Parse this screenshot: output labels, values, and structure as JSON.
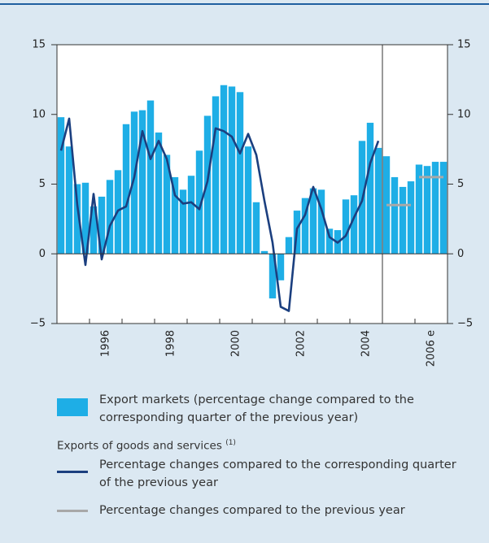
{
  "chart_data": {
    "type": "bar_line",
    "xlim": [
      1995,
      2007
    ],
    "xticks": [
      {
        "value": 1996,
        "label": "1996"
      },
      {
        "value": 1998,
        "label": "1998"
      },
      {
        "value": 2000,
        "label": "2000"
      },
      {
        "value": 2002,
        "label": "2002"
      },
      {
        "value": 2004,
        "label": "2004"
      },
      {
        "value": 2006,
        "label": "2006 e"
      }
    ],
    "divider_x": 2005,
    "ylim": [
      -5,
      15
    ],
    "yticks": [
      {
        "value": -5,
        "label": "−5"
      },
      0,
      5,
      10,
      15
    ],
    "series": [
      {
        "name": "Export markets (percentage change compared to the corresponding quarter of the previous year)",
        "type": "bar",
        "color": "#1eaee6",
        "values": [
          9.8,
          7.7,
          5.0,
          5.1,
          3.4,
          4.1,
          5.3,
          6.0,
          9.3,
          10.2,
          10.3,
          11.0,
          8.7,
          7.1,
          5.5,
          4.6,
          5.6,
          7.4,
          9.9,
          11.3,
          12.1,
          12.0,
          11.6,
          7.7,
          3.7,
          0.2,
          -3.2,
          -1.9,
          1.2,
          3.1,
          4.0,
          4.7,
          4.6,
          1.8,
          1.7,
          3.9,
          4.2,
          8.1,
          9.4,
          7.6,
          7.0,
          5.5,
          4.8,
          5.2,
          6.4,
          6.3,
          6.6,
          6.6
        ]
      },
      {
        "name": "Percentage changes compared to the corresponding quarter of the previous year",
        "type": "line",
        "color": "#1b3f7f",
        "values": [
          7.4,
          9.7,
          3.5,
          -0.8,
          4.3,
          -0.4,
          2.0,
          3.1,
          3.4,
          5.5,
          8.8,
          6.8,
          8.1,
          6.8,
          4.2,
          3.6,
          3.7,
          3.2,
          5.2,
          9.0,
          8.8,
          8.4,
          7.2,
          8.6,
          7.1,
          3.8,
          0.8,
          -3.8,
          -4.1,
          1.8,
          2.8,
          4.8,
          3.2,
          1.2,
          0.8,
          1.3,
          2.6,
          3.8,
          6.5,
          8.1,
          null,
          null,
          null,
          null,
          null,
          null,
          null,
          null
        ]
      },
      {
        "name": "Percentage changes compared to the previous year",
        "type": "annual",
        "color": "#a8a8a8",
        "values": [
          null,
          null,
          null,
          null,
          null,
          null,
          null,
          null,
          null,
          null,
          3.5,
          5.5
        ]
      }
    ],
    "legend_group": "Exports of goods and services",
    "legend_group_note": "(1)"
  }
}
